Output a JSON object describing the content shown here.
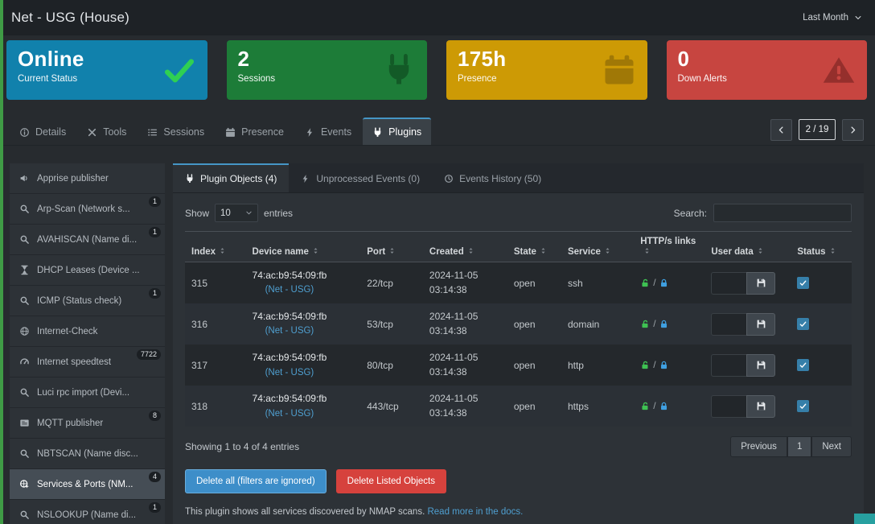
{
  "header": {
    "title": "Net - USG (House)",
    "time_range": "Last Month"
  },
  "status_cards": [
    {
      "value": "Online",
      "label": "Current Status",
      "color": "#1181ac",
      "icon": "check",
      "icon_color": "#2fd052"
    },
    {
      "value": "2",
      "label": "Sessions",
      "color": "#1d7c38",
      "icon": "plug",
      "icon_color": "#135a27"
    },
    {
      "value": "175h",
      "label": "Presence",
      "color": "#cd9a05",
      "icon": "calendar",
      "icon_color": "#a07806"
    },
    {
      "value": "0",
      "label": "Down Alerts",
      "color": "#c74540",
      "icon": "warning",
      "icon_color": "#952f2c"
    }
  ],
  "nav_tabs": [
    {
      "label": "Details",
      "icon": "info"
    },
    {
      "label": "Tools",
      "icon": "wrench"
    },
    {
      "label": "Sessions",
      "icon": "list"
    },
    {
      "label": "Presence",
      "icon": "calendar"
    },
    {
      "label": "Events",
      "icon": "bolt"
    },
    {
      "label": "Plugins",
      "icon": "plug"
    }
  ],
  "pager": {
    "position": "2 / 19"
  },
  "sidebar": {
    "items": [
      {
        "label": "Apprise publisher",
        "icon": "megaphone"
      },
      {
        "label": "Arp-Scan (Network s...",
        "icon": "search",
        "badge": "1"
      },
      {
        "label": "AVAHISCAN (Name di...",
        "icon": "search",
        "badge": "1"
      },
      {
        "label": "DHCP Leases (Device ...",
        "icon": "hourglass"
      },
      {
        "label": "ICMP (Status check)",
        "icon": "search",
        "badge": "1"
      },
      {
        "label": "Internet-Check",
        "icon": "globe"
      },
      {
        "label": "Internet speedtest",
        "icon": "gauge",
        "badge": "7722"
      },
      {
        "label": "Luci rpc import (Devi...",
        "icon": "search"
      },
      {
        "label": "MQTT publisher",
        "icon": "newspaper",
        "badge": "8"
      },
      {
        "label": "NBTSCAN (Name disc...",
        "icon": "search"
      },
      {
        "label": "Services & Ports (NM...",
        "icon": "network",
        "badge": "4"
      },
      {
        "label": "NSLOOKUP (Name di...",
        "icon": "search",
        "badge": "1"
      }
    ]
  },
  "content": {
    "tabs": [
      {
        "label": "Plugin Objects (4)",
        "icon": "plug"
      },
      {
        "label": "Unprocessed Events (0)",
        "icon": "bolt"
      },
      {
        "label": "Events History (50)",
        "icon": "clock"
      }
    ],
    "show_label": "Show",
    "show_value": "10",
    "entries_label": "entries",
    "search_label": "Search:",
    "table": {
      "columns": [
        "Index",
        "Device name",
        "Port",
        "Created",
        "State",
        "Service",
        "HTTP/s links",
        "User data",
        "Status"
      ],
      "rows": [
        {
          "index": "315",
          "mac": "74:ac:b9:54:09:fb",
          "device": "(Net - USG)",
          "port": "22/tcp",
          "created_date": "2024-11-05",
          "created_time": "03:14:38",
          "state": "open",
          "service": "ssh"
        },
        {
          "index": "316",
          "mac": "74:ac:b9:54:09:fb",
          "device": "(Net - USG)",
          "port": "53/tcp",
          "created_date": "2024-11-05",
          "created_time": "03:14:38",
          "state": "open",
          "service": "domain"
        },
        {
          "index": "317",
          "mac": "74:ac:b9:54:09:fb",
          "device": "(Net - USG)",
          "port": "80/tcp",
          "created_date": "2024-11-05",
          "created_time": "03:14:38",
          "state": "open",
          "service": "http"
        },
        {
          "index": "318",
          "mac": "74:ac:b9:54:09:fb",
          "device": "(Net - USG)",
          "port": "443/tcp",
          "created_date": "2024-11-05",
          "created_time": "03:14:38",
          "state": "open",
          "service": "https"
        }
      ],
      "summary": "Showing 1 to 4 of 4 entries"
    },
    "pagination": {
      "previous": "Previous",
      "page": "1",
      "next": "Next"
    },
    "actions": {
      "delete_all": "Delete all (filters are ignored)",
      "delete_listed": "Delete Listed Objects"
    },
    "note": "This plugin shows all services discovered by NMAP scans.",
    "note_link": "Read more in the docs."
  }
}
